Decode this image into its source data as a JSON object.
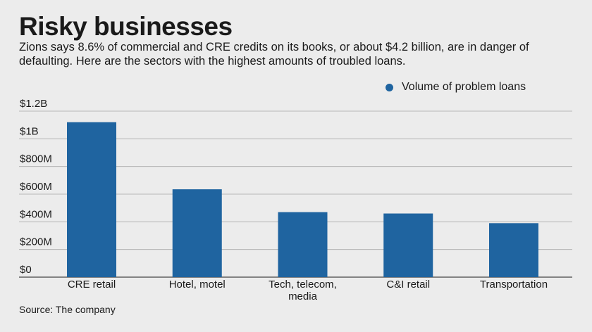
{
  "header": {
    "title": "Risky businesses",
    "subtitle": "Zions says 8.6% of commercial and CRE credits on its books, or about $4.2 billion, are in danger of defaulting. Here are the sectors with the highest amounts of troubled loans."
  },
  "legend": {
    "label": "Volume of problem loans",
    "color": "#1f64a0"
  },
  "footer": {
    "source": "Source: The company"
  },
  "chart_data": {
    "type": "bar",
    "categories": [
      "CRE retail",
      "Hotel, motel",
      "Tech, telecom, media",
      "C&I retail",
      "Transportation"
    ],
    "category_lines": [
      [
        "CRE retail"
      ],
      [
        "Hotel, motel"
      ],
      [
        "Tech, telecom,",
        "media"
      ],
      [
        "C&I retail"
      ],
      [
        "Transportation"
      ]
    ],
    "series": [
      {
        "name": "Volume of problem loans",
        "values": [
          1120,
          635,
          470,
          460,
          390
        ]
      }
    ],
    "value_unit": "millions of dollars",
    "ylim": [
      0,
      1200
    ],
    "yticks": [
      0,
      200,
      400,
      600,
      800,
      1000,
      1200
    ],
    "ytick_labels": [
      "$0",
      "$200M",
      "$400M",
      "$600M",
      "$800M",
      "$1B",
      "$1.2B"
    ],
    "grid": true,
    "legend_position": "top-right",
    "bar_color": "#1f64a0",
    "grid_color": "#a8a8a8"
  }
}
